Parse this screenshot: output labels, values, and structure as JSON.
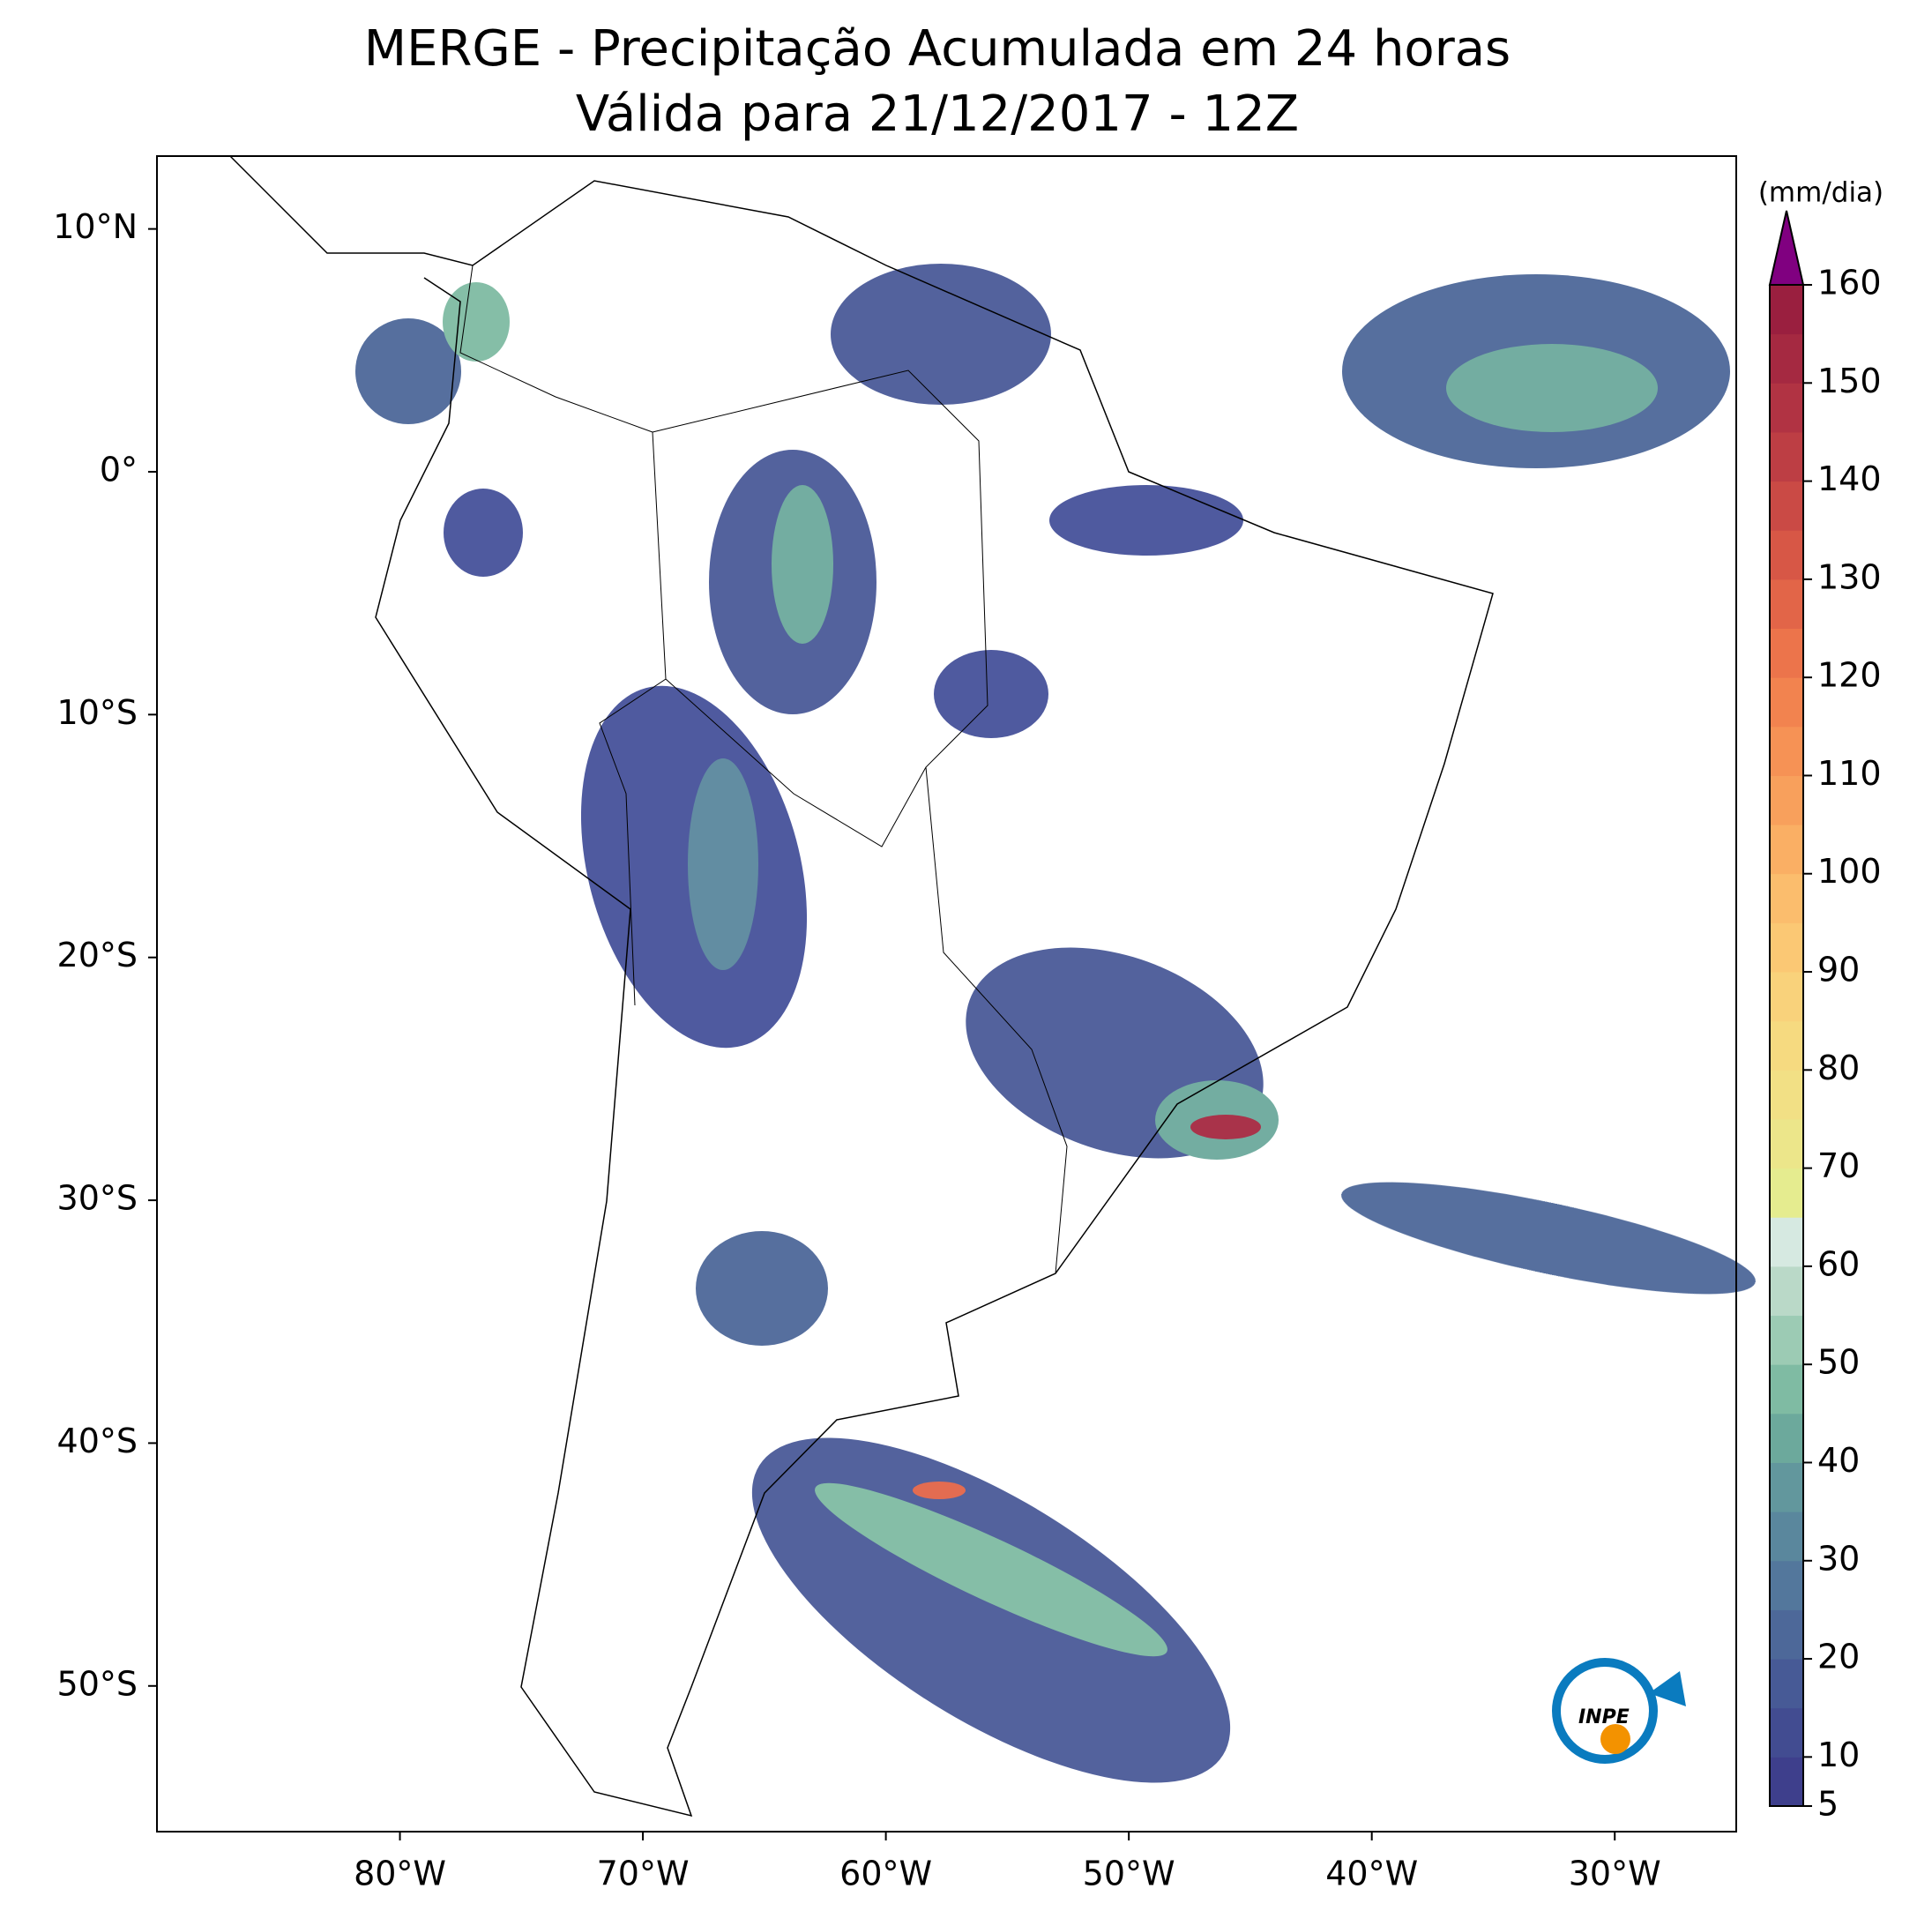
{
  "title": [
    "MERGE - Precipitação Acumulada em 24 horas",
    "Válida para 21/12/2017 - 12Z"
  ],
  "map": {
    "xlim": [
      -90,
      -25
    ],
    "ylim": [
      -56,
      13
    ],
    "xticks": [
      {
        "value": -80,
        "label": "80°W"
      },
      {
        "value": -70,
        "label": "70°W"
      },
      {
        "value": -60,
        "label": "60°W"
      },
      {
        "value": -50,
        "label": "50°W"
      },
      {
        "value": -40,
        "label": "40°W"
      },
      {
        "value": -30,
        "label": "30°W"
      }
    ],
    "yticks": [
      {
        "value": 10,
        "label": "10°N"
      },
      {
        "value": 0,
        "label": "0°"
      },
      {
        "value": -10,
        "label": "10°S"
      },
      {
        "value": -20,
        "label": "20°S"
      },
      {
        "value": -30,
        "label": "30°S"
      },
      {
        "value": -40,
        "label": "40°S"
      },
      {
        "value": -50,
        "label": "50°S"
      }
    ]
  },
  "colorbar": {
    "label": "(mm/dia)",
    "bounds": [
      5,
      10,
      15,
      20,
      25,
      30,
      35,
      40,
      45,
      50,
      55,
      60,
      65,
      70,
      75,
      80,
      85,
      90,
      95,
      100,
      105,
      110,
      115,
      120,
      125,
      130,
      135,
      140,
      145,
      150,
      155,
      160
    ],
    "colors": [
      "#3e3f8c",
      "#424c91",
      "#475a96",
      "#4d6899",
      "#53779c",
      "#5a879d",
      "#62979d",
      "#6ca99c",
      "#7fbba3",
      "#9ccbb4",
      "#bad9c8",
      "#d6e9e1",
      "#e5ec8f",
      "#ece68a",
      "#f2e085",
      "#f6da80",
      "#f9d27b",
      "#fbc874",
      "#fbbd6d",
      "#faaf64",
      "#f8a05c",
      "#f69255",
      "#f2834f",
      "#ec744b",
      "#e26548",
      "#d75746",
      "#ca4a45",
      "#bd3e44",
      "#b13343",
      "#a52941",
      "#9a1f3f"
    ],
    "extend_color": "#800080",
    "ticks": [
      5,
      10,
      20,
      30,
      40,
      50,
      60,
      70,
      80,
      90,
      100,
      110,
      120,
      130,
      140,
      150,
      160
    ]
  },
  "logo": "INPE"
}
